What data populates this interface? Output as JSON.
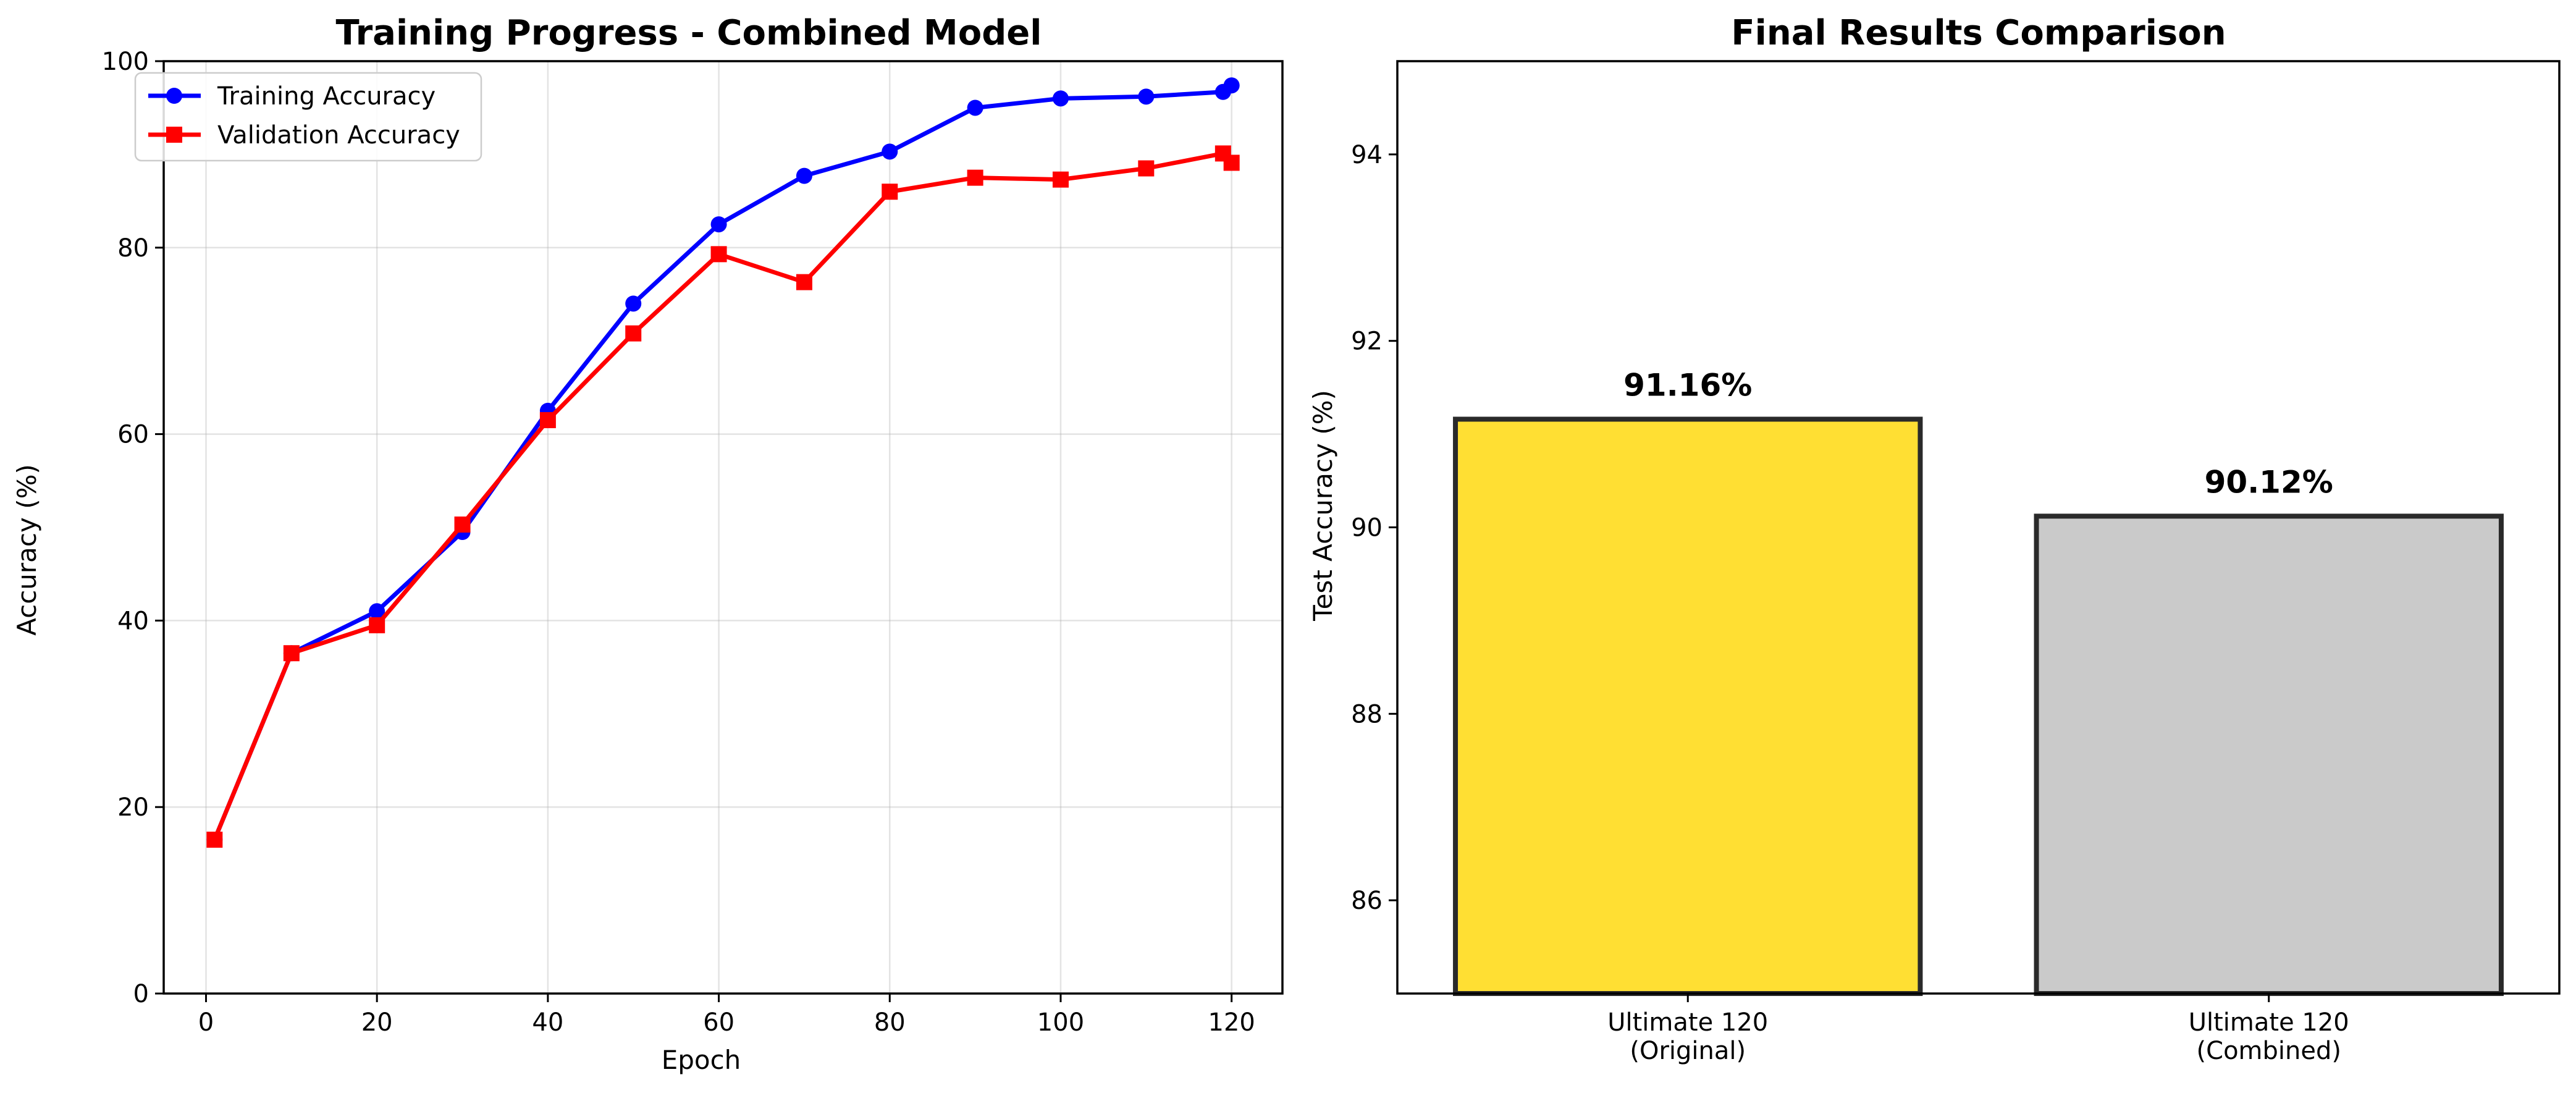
{
  "chart_data": [
    {
      "type": "line",
      "title": "Training Progress - Combined Model",
      "xlabel": "Epoch",
      "ylabel": "Accuracy (%)",
      "xlim": [
        -4.95,
        125.95
      ],
      "ylim": [
        0,
        100
      ],
      "xticks": [
        0,
        20,
        40,
        60,
        80,
        100,
        120
      ],
      "yticks": [
        0,
        20,
        40,
        60,
        80,
        100
      ],
      "grid": true,
      "legend": "upper-left",
      "series": [
        {
          "name": "Training Accuracy",
          "color": "#0000ff",
          "marker": "circle",
          "x": [
            1,
            10,
            20,
            30,
            40,
            50,
            60,
            70,
            80,
            90,
            100,
            110,
            119,
            120
          ],
          "y": [
            16.5,
            36.5,
            41.0,
            49.5,
            62.5,
            74.0,
            82.5,
            87.7,
            90.3,
            95.0,
            96.0,
            96.2,
            96.7,
            97.4
          ]
        },
        {
          "name": "Validation Accuracy",
          "color": "#ff0000",
          "marker": "square",
          "x": [
            1,
            10,
            20,
            30,
            40,
            50,
            60,
            70,
            80,
            90,
            100,
            110,
            119,
            120
          ],
          "y": [
            16.5,
            36.5,
            39.5,
            50.3,
            61.5,
            70.8,
            79.3,
            76.3,
            86.0,
            87.5,
            87.3,
            88.5,
            90.1,
            89.1
          ]
        }
      ]
    },
    {
      "type": "bar",
      "title": "Final Results Comparison",
      "xlabel": "",
      "ylabel": "Test Accuracy (%)",
      "ylim": [
        85,
        95
      ],
      "yticks": [
        86,
        88,
        90,
        92,
        94
      ],
      "grid": false,
      "categories": [
        [
          "Ultimate 120",
          "(Original)"
        ],
        [
          "Ultimate 120",
          "(Combined)"
        ]
      ],
      "values": [
        91.16,
        90.12
      ],
      "value_labels": [
        "91.16%",
        "90.12%"
      ],
      "colors": [
        "#ffdf33",
        "#cacaca"
      ],
      "edge_color": "#2a2a2a"
    }
  ]
}
